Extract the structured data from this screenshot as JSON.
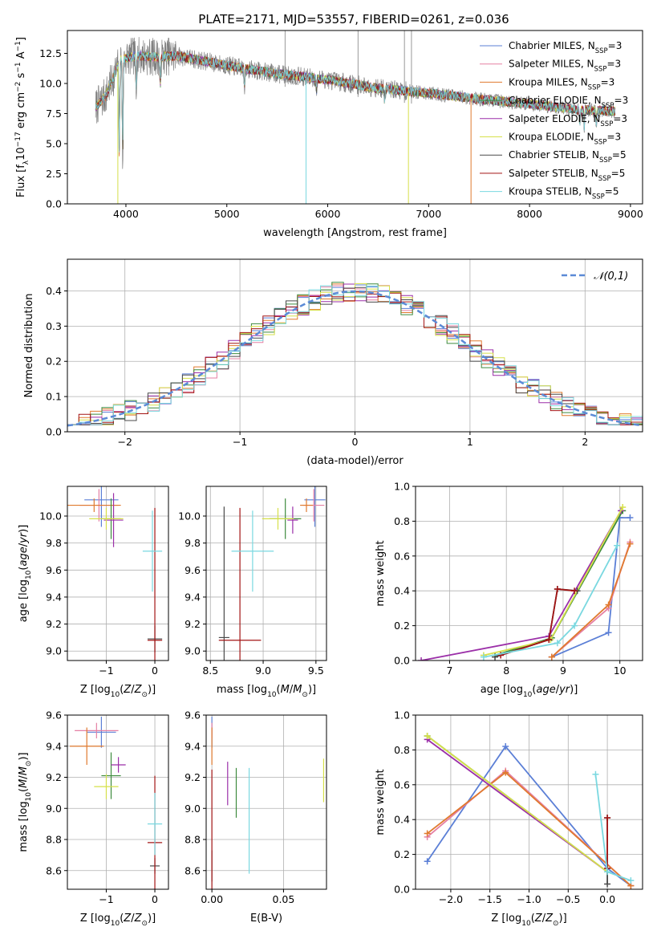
{
  "figure": {
    "title": "PLATE=2171, MJD=53557, FIBERID=0261, z=0.036"
  },
  "series_styles": [
    {
      "name": "Chabrier MILES",
      "nssp": "3",
      "color": "#5b7fd6"
    },
    {
      "name": "Salpeter MILES",
      "nssp": "3",
      "color": "#e580a4"
    },
    {
      "name": "Kroupa MILES",
      "nssp": "3",
      "color": "#e07a2e"
    },
    {
      "name": "Chabrier ELODIE",
      "nssp": "3",
      "color": "#3d8a3d"
    },
    {
      "name": "Salpeter ELODIE",
      "nssp": "3",
      "color": "#9b2fa8"
    },
    {
      "name": "Kroupa ELODIE",
      "nssp": "3",
      "color": "#d6e04a"
    },
    {
      "name": "Chabrier STELIB",
      "nssp": "5",
      "color": "#4a4a4a"
    },
    {
      "name": "Salpeter STELIB",
      "nssp": "5",
      "color": "#a31515"
    },
    {
      "name": "Kroupa STELIB",
      "nssp": "5",
      "color": "#7ad8e0"
    }
  ],
  "chart_data": [
    {
      "id": "spectrum",
      "type": "line",
      "title": "PLATE=2171, MJD=53557, FIBERID=0261, z=0.036",
      "xlabel": "wavelength [Angstrom, rest frame]",
      "ylabel": "Flux [f_λ 10^-17 erg cm^-2 s^-1 A^-1]",
      "xlim": [
        3420,
        9120
      ],
      "ylim": [
        0,
        14.4
      ],
      "xticks": [
        "4000",
        "5000",
        "6000",
        "7000",
        "8000",
        "9000"
      ],
      "yticks": [
        "0.0",
        "2.5",
        "5.0",
        "7.5",
        "10.0",
        "12.5"
      ],
      "legend": "top-right",
      "legend_entries": [
        "Chabrier MILES, N_SSP=3",
        "Salpeter MILES, N_SSP=3",
        "Kroupa MILES, N_SSP=3",
        "Chabrier ELODIE, N_SSP=3",
        "Salpeter ELODIE, N_SSP=3",
        "Kroupa ELODIE, N_SSP=3",
        "Chabrier STELIB, N_SSP=5",
        "Salpeter STELIB, N_SSP=5",
        "Kroupa STELIB, N_SSP=5"
      ],
      "data_x_range": [
        3700,
        8850
      ],
      "continuum": [
        [
          3700,
          8.0
        ],
        [
          3800,
          9.0
        ],
        [
          3950,
          12.0
        ],
        [
          4100,
          12.3
        ],
        [
          4300,
          12.2
        ],
        [
          4500,
          12.3
        ],
        [
          5000,
          11.5
        ],
        [
          5500,
          10.8
        ],
        [
          6000,
          10.3
        ],
        [
          6500,
          9.6
        ],
        [
          7000,
          9.2
        ],
        [
          7500,
          8.7
        ],
        [
          8000,
          8.3
        ],
        [
          8500,
          7.8
        ],
        [
          8850,
          7.7
        ]
      ],
      "features": [
        [
          3934,
          3.5
        ],
        [
          3968,
          3.2
        ],
        [
          4101,
          9.0
        ],
        [
          4340,
          9.5
        ],
        [
          5175,
          9.2
        ],
        [
          5890,
          9.4
        ],
        [
          6563,
          8.5
        ],
        [
          8498,
          6.6
        ],
        [
          8542,
          6.3
        ],
        [
          8662,
          6.4
        ]
      ],
      "sky_spikes": [
        [
          5577,
          14.4
        ],
        [
          6300,
          14.4
        ],
        [
          6760,
          14.4
        ],
        [
          6830,
          14.4
        ]
      ]
    },
    {
      "id": "residuals",
      "type": "bar",
      "xlabel": "(data-model)/error",
      "ylabel": "Normed distribution",
      "xlim": [
        -2.5,
        2.5
      ],
      "ylim": [
        0,
        0.49
      ],
      "xticks": [
        "−2",
        "−1",
        "0",
        "1",
        "2"
      ],
      "yticks": [
        "0.0",
        "0.1",
        "0.2",
        "0.3",
        "0.4"
      ],
      "legend": "top-right",
      "legend_entries": [
        "𝒩(0,1)"
      ],
      "bin_width": 0.1,
      "gaussian": {
        "mean": 0,
        "sigma": 1
      }
    },
    {
      "id": "age_vs_Z",
      "type": "scatter",
      "xlabel": "Z [log10(Z/Z⊙)]",
      "ylabel": "age [log10(age/yr)]",
      "xlim": [
        -1.8,
        0.28
      ],
      "ylim": [
        8.93,
        10.22
      ],
      "xticks": [
        "−1",
        "0"
      ],
      "yticks": [
        "9.0",
        "9.2",
        "9.4",
        "9.6",
        "9.8",
        "10.0"
      ],
      "points": [
        {
          "series": "Chabrier MILES",
          "x": -1.1,
          "y": 10.12,
          "ex": 0.35,
          "ey": 0.2
        },
        {
          "series": "Salpeter MILES",
          "x": -1.15,
          "y": 10.08,
          "ex": 0.4,
          "ey": 0.12
        },
        {
          "series": "Kroupa MILES",
          "x": -1.25,
          "y": 10.08,
          "ex": 0.55,
          "ey": 0.05
        },
        {
          "series": "Chabrier ELODIE",
          "x": -0.9,
          "y": 9.98,
          "ex": 0.2,
          "ey": 0.15
        },
        {
          "series": "Salpeter ELODIE",
          "x": -0.85,
          "y": 9.97,
          "ex": 0.2,
          "ey": 0.2
        },
        {
          "series": "Kroupa ELODIE",
          "x": -1.0,
          "y": 9.98,
          "ex": 0.35,
          "ey": 0.08
        },
        {
          "series": "Chabrier STELIB",
          "x": 0.0,
          "y": 9.09,
          "ex": 0.15,
          "ey": 0.1
        },
        {
          "series": "Salpeter STELIB",
          "x": 0.0,
          "y": 9.08,
          "ex": 0.15,
          "ey": 0.98
        },
        {
          "series": "Kroupa STELIB",
          "x": -0.05,
          "y": 9.74,
          "ex": 0.2,
          "ey": 0.3
        }
      ]
    },
    {
      "id": "age_vs_mass",
      "type": "scatter",
      "xlabel": "mass [log10(M/M⊙)]",
      "ylabel": "",
      "xlim": [
        8.46,
        9.6
      ],
      "ylim": [
        8.93,
        10.22
      ],
      "xticks": [
        "8.5",
        "9.0",
        "9.5"
      ],
      "yticks": [
        "9.0",
        "9.2",
        "9.4",
        "9.6",
        "9.8",
        "10.0"
      ],
      "points": [
        {
          "series": "Chabrier MILES",
          "x": 9.49,
          "y": 10.12,
          "ex": 0.1,
          "ey": 0.2
        },
        {
          "series": "Salpeter MILES",
          "x": 9.48,
          "y": 10.08,
          "ex": 0.1,
          "ey": 0.12
        },
        {
          "series": "Kroupa MILES",
          "x": 9.41,
          "y": 10.08,
          "ex": 0.06,
          "ey": 0.05
        },
        {
          "series": "Chabrier ELODIE",
          "x": 9.21,
          "y": 9.98,
          "ex": 0.15,
          "ey": 0.15
        },
        {
          "series": "Salpeter ELODIE",
          "x": 9.28,
          "y": 9.97,
          "ex": 0.05,
          "ey": 0.1
        },
        {
          "series": "Kroupa ELODIE",
          "x": 9.14,
          "y": 9.98,
          "ex": 0.15,
          "ey": 0.08
        },
        {
          "series": "Chabrier STELIB",
          "x": 8.63,
          "y": 9.1,
          "ex": 0.05,
          "ey": 0.97
        },
        {
          "series": "Salpeter STELIB",
          "x": 8.78,
          "y": 9.08,
          "ex": 0.2,
          "ey": 0.98
        },
        {
          "series": "Kroupa STELIB",
          "x": 8.9,
          "y": 9.74,
          "ex": 0.2,
          "ey": 0.3
        }
      ]
    },
    {
      "id": "weight_vs_age",
      "type": "line",
      "xlabel": "age [log10(age/yr)]",
      "ylabel": "mass weight",
      "xlim": [
        6.4,
        10.4
      ],
      "ylim": [
        0,
        1
      ],
      "xticks": [
        "7",
        "8",
        "9",
        "10"
      ],
      "yticks": [
        "0.0",
        "0.2",
        "0.4",
        "0.6",
        "0.8",
        "1.0"
      ],
      "series": [
        {
          "name": "Chabrier MILES",
          "points": [
            [
              8.8,
              0.02
            ],
            [
              9.8,
              0.16
            ],
            [
              10.0,
              0.82
            ],
            [
              10.18,
              0.82
            ]
          ]
        },
        {
          "name": "Salpeter MILES",
          "points": [
            [
              8.8,
              0.02
            ],
            [
              9.8,
              0.3
            ],
            [
              10.18,
              0.68
            ]
          ]
        },
        {
          "name": "Kroupa MILES",
          "points": [
            [
              8.8,
              0.02
            ],
            [
              9.8,
              0.32
            ],
            [
              10.18,
              0.67
            ]
          ]
        },
        {
          "name": "Chabrier ELODIE",
          "points": [
            [
              7.8,
              0.03
            ],
            [
              8.8,
              0.13
            ],
            [
              10.05,
              0.86
            ]
          ]
        },
        {
          "name": "Salpeter ELODIE",
          "points": [
            [
              6.5,
              0.0
            ],
            [
              8.75,
              0.14
            ],
            [
              10.02,
              0.86
            ]
          ]
        },
        {
          "name": "Kroupa ELODIE",
          "points": [
            [
              7.6,
              0.03
            ],
            [
              8.78,
              0.12
            ],
            [
              10.05,
              0.88
            ]
          ]
        },
        {
          "name": "Chabrier STELIB",
          "points": [
            [
              7.8,
              0.02
            ],
            [
              8.75,
              0.12
            ],
            [
              8.9,
              0.41
            ],
            [
              9.25,
              0.4
            ]
          ]
        },
        {
          "name": "Salpeter STELIB",
          "points": [
            [
              7.9,
              0.03
            ],
            [
              8.75,
              0.12
            ],
            [
              8.9,
              0.41
            ],
            [
              9.2,
              0.4
            ]
          ]
        },
        {
          "name": "Kroupa STELIB",
          "points": [
            [
              7.6,
              0.02
            ],
            [
              8.9,
              0.1
            ],
            [
              9.2,
              0.2
            ],
            [
              9.95,
              0.66
            ]
          ]
        }
      ]
    },
    {
      "id": "mass_vs_Z",
      "type": "scatter",
      "xlabel": "Z [log10(Z/Z⊙)]",
      "ylabel": "mass [log10(M/M⊙)]",
      "xlim": [
        -1.8,
        0.28
      ],
      "ylim": [
        8.48,
        9.6
      ],
      "xticks": [
        "−1",
        "0"
      ],
      "yticks": [
        "8.6",
        "8.8",
        "9.0",
        "9.2",
        "9.4",
        "9.6"
      ],
      "points": [
        {
          "series": "Chabrier MILES",
          "x": -1.1,
          "y": 9.49,
          "ex": 0.3,
          "ey": 0.1
        },
        {
          "series": "Salpeter MILES",
          "x": -1.2,
          "y": 9.5,
          "ex": 0.45,
          "ey": 0.05
        },
        {
          "series": "Kroupa MILES",
          "x": -1.4,
          "y": 9.4,
          "ex": 0.35,
          "ey": 0.12
        },
        {
          "series": "Chabrier ELODIE",
          "x": -0.9,
          "y": 9.21,
          "ex": 0.2,
          "ey": 0.15
        },
        {
          "series": "Salpeter ELODIE",
          "x": -0.75,
          "y": 9.28,
          "ex": 0.15,
          "ey": 0.05
        },
        {
          "series": "Kroupa ELODIE",
          "x": -1.0,
          "y": 9.14,
          "ex": 0.25,
          "ey": 0.08
        },
        {
          "series": "Chabrier STELIB",
          "x": 0.0,
          "y": 8.63,
          "ex": 0.1,
          "ey": 0.05
        },
        {
          "series": "Salpeter STELIB",
          "x": 0.0,
          "y": 8.78,
          "ex": 0.15,
          "ey": 0.43
        },
        {
          "series": "Kroupa STELIB",
          "x": 0.0,
          "y": 8.9,
          "ex": 0.15,
          "ey": 0.2
        }
      ]
    },
    {
      "id": "mass_vs_ebv",
      "type": "scatter",
      "xlabel": "E(B-V)",
      "ylabel": "",
      "xlim": [
        -0.004,
        0.08
      ],
      "ylim": [
        8.48,
        9.6
      ],
      "xticks": [
        "0.00",
        "0.05"
      ],
      "yticks": [
        "8.6",
        "8.8",
        "9.0",
        "9.2",
        "9.4",
        "9.6"
      ],
      "points": [
        {
          "series": "Chabrier MILES",
          "x": 0.0,
          "y": 9.49,
          "ex": 0,
          "ey": 0.1
        },
        {
          "series": "Salpeter MILES",
          "x": 0.0,
          "y": 9.5,
          "ex": 0,
          "ey": 0.05
        },
        {
          "series": "Kroupa MILES",
          "x": 0.0,
          "y": 9.4,
          "ex": 0,
          "ey": 0.12
        },
        {
          "series": "Chabrier ELODIE",
          "x": 0.017,
          "y": 9.1,
          "ex": 0,
          "ey": 0.16
        },
        {
          "series": "Salpeter ELODIE",
          "x": 0.011,
          "y": 9.16,
          "ex": 0,
          "ey": 0.14
        },
        {
          "series": "Kroupa ELODIE",
          "x": 0.078,
          "y": 9.18,
          "ex": 0,
          "ey": 0.14
        },
        {
          "series": "Chabrier STELIB",
          "x": 0.0,
          "y": 8.63,
          "ex": 0,
          "ey": 0.1
        },
        {
          "series": "Salpeter STELIB",
          "x": 0.0,
          "y": 8.85,
          "ex": 0,
          "ey": 0.4
        },
        {
          "series": "Kroupa STELIB",
          "x": 0.026,
          "y": 8.92,
          "ex": 0,
          "ey": 0.34
        }
      ]
    },
    {
      "id": "weight_vs_Z",
      "type": "line",
      "xlabel": "Z [log10(Z/Z⊙)]",
      "ylabel": "mass weight",
      "xlim": [
        -2.45,
        0.45
      ],
      "ylim": [
        0,
        1
      ],
      "xticks": [
        "−2.0",
        "−1.5",
        "−1.0",
        "−0.5",
        "0.0"
      ],
      "yticks": [
        "0.0",
        "0.2",
        "0.4",
        "0.6",
        "0.8",
        "1.0"
      ],
      "series": [
        {
          "name": "Chabrier MILES",
          "points": [
            [
              -2.3,
              0.16
            ],
            [
              -1.3,
              0.82
            ],
            [
              0.0,
              0.12
            ],
            [
              0.3,
              0.02
            ]
          ]
        },
        {
          "name": "Salpeter MILES",
          "points": [
            [
              -2.3,
              0.3
            ],
            [
              -1.3,
              0.68
            ],
            [
              0.3,
              0.02
            ]
          ]
        },
        {
          "name": "Kroupa MILES",
          "points": [
            [
              -2.3,
              0.32
            ],
            [
              -1.3,
              0.67
            ],
            [
              0.3,
              0.02
            ]
          ]
        },
        {
          "name": "Chabrier ELODIE",
          "points": [
            [
              -2.3,
              0.88
            ],
            [
              0.0,
              0.1
            ]
          ]
        },
        {
          "name": "Salpeter ELODIE",
          "points": [
            [
              -2.3,
              0.86
            ],
            [
              0.0,
              0.1
            ]
          ]
        },
        {
          "name": "Kroupa ELODIE",
          "points": [
            [
              -2.3,
              0.88
            ],
            [
              0.0,
              0.1
            ]
          ]
        },
        {
          "name": "Chabrier STELIB",
          "points": [
            [
              0.0,
              0.03
            ],
            [
              0.0,
              0.41
            ]
          ]
        },
        {
          "name": "Salpeter STELIB",
          "points": [
            [
              0.0,
              0.12
            ],
            [
              0.0,
              0.41
            ]
          ]
        },
        {
          "name": "Kroupa STELIB",
          "points": [
            [
              -0.15,
              0.66
            ],
            [
              0.0,
              0.1
            ],
            [
              0.3,
              0.05
            ]
          ]
        }
      ]
    }
  ]
}
